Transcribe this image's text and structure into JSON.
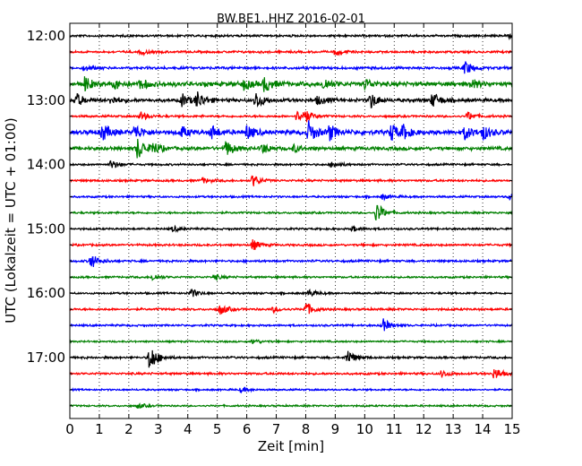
{
  "chart_data": {
    "type": "line",
    "title": "BW.BE1..HHZ 2016-02-01",
    "xlabel": "Zeit  [min]",
    "ylabel": "UTC (Lokalzeit = UTC + 01:00)",
    "xlim": [
      0,
      15
    ],
    "x_ticks": [
      "0",
      "1",
      "2",
      "3",
      "4",
      "5",
      "6",
      "7",
      "8",
      "9",
      "10",
      "11",
      "12",
      "13",
      "14",
      "15"
    ],
    "y_tick_labels": [
      "12:00",
      "13:00",
      "14:00",
      "15:00",
      "16:00",
      "17:00"
    ],
    "grid": "vertical dotted at each minute",
    "trace_colors": [
      "#000000",
      "#ff0000",
      "#0000ff",
      "#008000"
    ],
    "traces": [
      {
        "start": "12:00",
        "color": "#000000",
        "noise": 1.0,
        "events": [
          {
            "t": 14.8,
            "amp": 3
          }
        ]
      },
      {
        "start": "12:15",
        "color": "#ff0000",
        "noise": 1.0,
        "events": [
          {
            "t": 2.4,
            "amp": 3
          },
          {
            "t": 9.0,
            "amp": 4
          }
        ]
      },
      {
        "start": "12:30",
        "color": "#0000ff",
        "noise": 1.2,
        "events": [
          {
            "t": 0.5,
            "amp": 3
          },
          {
            "t": 13.4,
            "amp": 8
          }
        ]
      },
      {
        "start": "12:45",
        "color": "#008000",
        "noise": 2.0,
        "events": [
          {
            "t": 0.5,
            "amp": 8
          },
          {
            "t": 1.5,
            "amp": 5
          },
          {
            "t": 2.4,
            "amp": 6
          },
          {
            "t": 5.9,
            "amp": 6
          },
          {
            "t": 6.6,
            "amp": 9
          },
          {
            "t": 8.6,
            "amp": 7
          },
          {
            "t": 10.0,
            "amp": 6
          },
          {
            "t": 13.6,
            "amp": 5
          }
        ]
      },
      {
        "start": "13:00",
        "color": "#000000",
        "noise": 1.6,
        "events": [
          {
            "t": 0.2,
            "amp": 8
          },
          {
            "t": 1.4,
            "amp": 5
          },
          {
            "t": 3.8,
            "amp": 7
          },
          {
            "t": 4.3,
            "amp": 10
          },
          {
            "t": 6.3,
            "amp": 10
          },
          {
            "t": 8.4,
            "amp": 5
          },
          {
            "t": 10.2,
            "amp": 9
          },
          {
            "t": 12.3,
            "amp": 9
          }
        ]
      },
      {
        "start": "13:15",
        "color": "#ff0000",
        "noise": 1.0,
        "events": [
          {
            "t": 2.4,
            "amp": 5
          },
          {
            "t": 7.7,
            "amp": 6
          },
          {
            "t": 7.9,
            "amp": 8
          },
          {
            "t": 13.5,
            "amp": 5
          }
        ]
      },
      {
        "start": "13:30",
        "color": "#0000ff",
        "noise": 2.0,
        "events": [
          {
            "t": 1.1,
            "amp": 10
          },
          {
            "t": 2.2,
            "amp": 9
          },
          {
            "t": 3.8,
            "amp": 6
          },
          {
            "t": 4.8,
            "amp": 8
          },
          {
            "t": 6.0,
            "amp": 8
          },
          {
            "t": 8.1,
            "amp": 12
          },
          {
            "t": 8.8,
            "amp": 9
          },
          {
            "t": 10.9,
            "amp": 10
          },
          {
            "t": 11.3,
            "amp": 7
          },
          {
            "t": 13.4,
            "amp": 8
          },
          {
            "t": 14.0,
            "amp": 8
          }
        ]
      },
      {
        "start": "13:45",
        "color": "#008000",
        "noise": 1.6,
        "events": [
          {
            "t": 2.3,
            "amp": 13
          },
          {
            "t": 2.8,
            "amp": 7
          },
          {
            "t": 5.3,
            "amp": 9
          },
          {
            "t": 6.5,
            "amp": 6
          },
          {
            "t": 7.6,
            "amp": 4
          }
        ]
      },
      {
        "start": "14:00",
        "color": "#000000",
        "noise": 0.9,
        "events": [
          {
            "t": 1.4,
            "amp": 5
          },
          {
            "t": 8.9,
            "amp": 4
          }
        ]
      },
      {
        "start": "14:15",
        "color": "#ff0000",
        "noise": 1.0,
        "events": [
          {
            "t": 6.2,
            "amp": 7
          },
          {
            "t": 4.5,
            "amp": 3
          }
        ]
      },
      {
        "start": "14:30",
        "color": "#0000ff",
        "noise": 0.9,
        "events": [
          {
            "t": 14.9,
            "amp": 4
          },
          {
            "t": 10.6,
            "amp": 3
          }
        ]
      },
      {
        "start": "14:45",
        "color": "#008000",
        "noise": 0.9,
        "events": [
          {
            "t": 10.4,
            "amp": 12
          }
        ]
      },
      {
        "start": "15:00",
        "color": "#000000",
        "noise": 0.9,
        "events": [
          {
            "t": 3.5,
            "amp": 3
          },
          {
            "t": 9.6,
            "amp": 3
          }
        ]
      },
      {
        "start": "15:15",
        "color": "#ff0000",
        "noise": 1.0,
        "events": [
          {
            "t": 6.2,
            "amp": 6
          }
        ]
      },
      {
        "start": "15:30",
        "color": "#0000ff",
        "noise": 1.0,
        "events": [
          {
            "t": 0.7,
            "amp": 9
          }
        ]
      },
      {
        "start": "15:45",
        "color": "#008000",
        "noise": 0.9,
        "events": [
          {
            "t": 2.8,
            "amp": 4
          },
          {
            "t": 4.9,
            "amp": 3
          }
        ]
      },
      {
        "start": "16:00",
        "color": "#000000",
        "noise": 0.9,
        "events": [
          {
            "t": 4.1,
            "amp": 5
          },
          {
            "t": 8.1,
            "amp": 4
          }
        ]
      },
      {
        "start": "16:15",
        "color": "#ff0000",
        "noise": 1.0,
        "events": [
          {
            "t": 5.1,
            "amp": 6
          },
          {
            "t": 8.0,
            "amp": 8
          },
          {
            "t": 6.9,
            "amp": 3
          }
        ]
      },
      {
        "start": "16:30",
        "color": "#0000ff",
        "noise": 0.9,
        "events": [
          {
            "t": 10.6,
            "amp": 8
          }
        ]
      },
      {
        "start": "16:45",
        "color": "#008000",
        "noise": 0.8,
        "events": [
          {
            "t": 6.2,
            "amp": 3
          }
        ]
      },
      {
        "start": "17:00",
        "color": "#000000",
        "noise": 1.0,
        "events": [
          {
            "t": 2.7,
            "amp": 16
          },
          {
            "t": 9.4,
            "amp": 9
          }
        ]
      },
      {
        "start": "17:15",
        "color": "#ff0000",
        "noise": 1.0,
        "events": [
          {
            "t": 12.6,
            "amp": 4
          },
          {
            "t": 14.4,
            "amp": 7
          }
        ]
      },
      {
        "start": "17:30",
        "color": "#0000ff",
        "noise": 0.8,
        "events": [
          {
            "t": 5.8,
            "amp": 3
          }
        ]
      },
      {
        "start": "17:45",
        "color": "#008000",
        "noise": 0.8,
        "events": [
          {
            "t": 2.3,
            "amp": 3
          }
        ]
      }
    ]
  }
}
